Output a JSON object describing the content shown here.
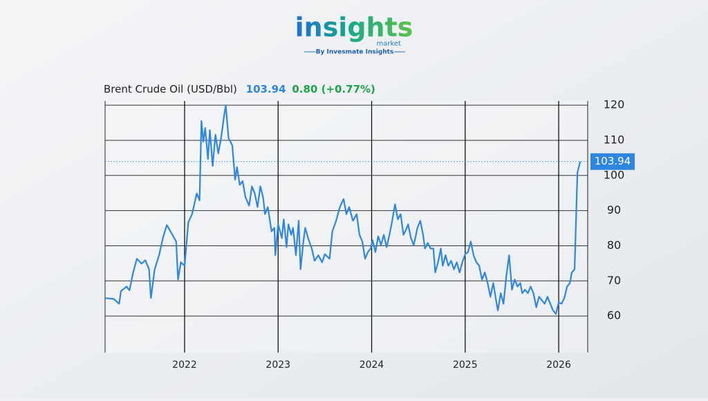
{
  "logo": {
    "brand": "insights",
    "sub": "market",
    "tagline": "By Invesmate Insights"
  },
  "chart_data": {
    "type": "line",
    "title": "Brent Crude Oil (USD/Bbl)",
    "price": "103.94",
    "change": "0.80 (+0.77%)",
    "x": [
      2021.15,
      2021.24,
      2021.3,
      2021.32,
      2021.38,
      2021.41,
      2021.45,
      2021.49,
      2021.54,
      2021.58,
      2021.62,
      2021.64,
      2021.68,
      2021.73,
      2021.77,
      2021.81,
      2021.87,
      2021.91,
      2021.93,
      2021.96,
      2022.0,
      2022.04,
      2022.08,
      2022.13,
      2022.16,
      2022.18,
      2022.2,
      2022.22,
      2022.25,
      2022.27,
      2022.3,
      2022.33,
      2022.36,
      2022.39,
      2022.42,
      2022.44,
      2022.47,
      2022.51,
      2022.54,
      2022.56,
      2022.59,
      2022.62,
      2022.65,
      2022.69,
      2022.72,
      2022.75,
      2022.78,
      2022.81,
      2022.84,
      2022.86,
      2022.89,
      2022.93,
      2022.96,
      2022.97,
      2023.0,
      2023.04,
      2023.06,
      2023.09,
      2023.11,
      2023.14,
      2023.16,
      2023.19,
      2023.22,
      2023.24,
      2023.27,
      2023.29,
      2023.32,
      2023.36,
      2023.39,
      2023.43,
      2023.47,
      2023.5,
      2023.55,
      2023.58,
      2023.62,
      2023.66,
      2023.7,
      2023.73,
      2023.76,
      2023.8,
      2023.84,
      2023.87,
      2023.9,
      2023.93,
      2023.96,
      2023.99,
      2024.01,
      2024.04,
      2024.07,
      2024.1,
      2024.13,
      2024.16,
      2024.19,
      2024.22,
      2024.25,
      2024.28,
      2024.31,
      2024.34,
      2024.37,
      2024.39,
      2024.42,
      2024.45,
      2024.49,
      2024.52,
      2024.55,
      2024.57,
      2024.6,
      2024.63,
      2024.66,
      2024.68,
      2024.71,
      2024.74,
      2024.76,
      2024.79,
      2024.82,
      2024.85,
      2024.88,
      2024.91,
      2024.94,
      2024.97,
      2025.0,
      2025.03,
      2025.06,
      2025.09,
      2025.12,
      2025.15,
      2025.18,
      2025.21,
      2025.24,
      2025.27,
      2025.3,
      2025.33,
      2025.35,
      2025.38,
      2025.41,
      2025.44,
      2025.47,
      2025.5,
      2025.53,
      2025.56,
      2025.59,
      2025.61,
      2025.64,
      2025.67,
      2025.7,
      2025.73,
      2025.76,
      2025.79,
      2025.82,
      2025.85,
      2025.88,
      2025.91,
      2025.94,
      2025.97,
      2026.0,
      2026.03,
      2026.06,
      2026.09,
      2026.12,
      2026.14,
      2026.17,
      2026.2,
      2026.23
    ],
    "series": [
      {
        "name": "Brent Crude Oil",
        "color": "#2f86e0",
        "values": [
          65.1,
          64.9,
          63.5,
          67.1,
          68.4,
          67.3,
          72.4,
          76.3,
          74.9,
          75.9,
          73.3,
          65.1,
          73.3,
          77.6,
          82.4,
          85.9,
          83.1,
          81.2,
          70.4,
          75.3,
          74.3,
          86.7,
          89.0,
          94.9,
          92.9,
          115.5,
          109.6,
          113.5,
          104.7,
          112.9,
          102.7,
          111.6,
          106.3,
          110.6,
          116.5,
          120.0,
          110.6,
          108.6,
          98.8,
          102.4,
          97.3,
          98.4,
          93.9,
          91.4,
          96.9,
          94.9,
          91.0,
          96.9,
          93.7,
          89.0,
          91.0,
          84.1,
          85.1,
          77.3,
          86.1,
          82.2,
          87.5,
          79.6,
          86.1,
          83.1,
          85.1,
          77.3,
          87.1,
          73.3,
          81.2,
          85.1,
          82.2,
          79.2,
          75.7,
          77.3,
          75.3,
          77.6,
          76.3,
          84.1,
          87.1,
          91.0,
          93.3,
          89.0,
          91.0,
          87.1,
          89.0,
          83.1,
          81.2,
          76.3,
          78.2,
          79.2,
          81.6,
          78.2,
          82.7,
          80.2,
          83.1,
          79.6,
          83.1,
          87.1,
          91.8,
          87.5,
          89.0,
          83.1,
          84.7,
          86.1,
          82.2,
          80.2,
          85.1,
          87.1,
          83.1,
          79.2,
          80.8,
          79.2,
          79.2,
          72.4,
          75.3,
          79.2,
          74.3,
          77.3,
          74.3,
          75.7,
          73.3,
          75.3,
          72.4,
          75.3,
          77.6,
          78.2,
          81.2,
          77.3,
          75.3,
          74.3,
          70.4,
          72.4,
          69.4,
          65.5,
          69.4,
          64.5,
          61.6,
          66.5,
          63.5,
          71.4,
          77.3,
          67.5,
          70.4,
          68.4,
          69.4,
          66.5,
          67.5,
          66.5,
          68.4,
          66.5,
          62.5,
          65.5,
          64.5,
          63.5,
          65.5,
          63.5,
          61.6,
          60.6,
          63.9,
          63.5,
          65.1,
          68.4,
          69.4,
          72.4,
          73.3,
          100.8,
          103.94
        ]
      }
    ],
    "xlim": [
      2021.15,
      2026.31
    ],
    "xticks": [
      2022,
      2023,
      2024,
      2025,
      2026
    ],
    "ylim": [
      49.6,
      121.2
    ],
    "yticks": [
      60,
      70,
      80,
      90,
      100,
      110,
      120
    ],
    "grid": true
  }
}
